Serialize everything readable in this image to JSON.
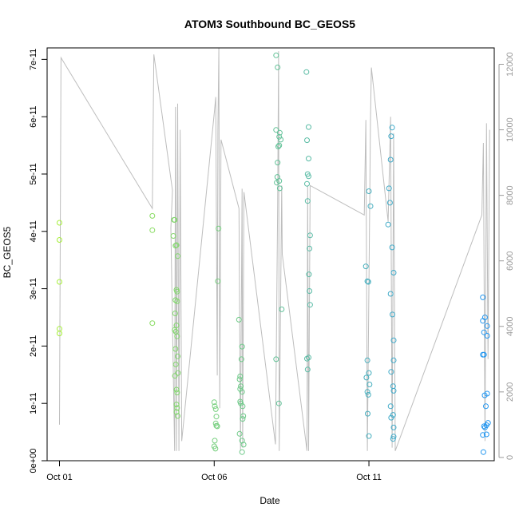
{
  "chart_data": {
    "type": "scatter",
    "title": "ATOM3 Southbound BC_GEOS5",
    "xlabel": "Date",
    "ylabel": "BC_GEOS5",
    "x_ticks": [
      "Oct 01",
      "Oct 06",
      "Oct 11"
    ],
    "y_ticks": [
      "0e+00",
      "1e-11",
      "2e-11",
      "3e-11",
      "4e-11",
      "5e-11",
      "6e-11",
      "7e-11"
    ],
    "y_tick_values": [
      0,
      1e-11,
      2e-11,
      3e-11,
      4e-11,
      5e-11,
      6e-11,
      7e-11
    ],
    "ylim": [
      0,
      7.2e-11
    ],
    "xlim_days": [
      30.6,
      45.05
    ],
    "x_tick_days": [
      31,
      36,
      41
    ],
    "y2_ticks": [
      "0",
      "2000",
      "4000",
      "6000",
      "8000",
      "10000",
      "12000"
    ],
    "y2_tick_values": [
      0,
      2000,
      4000,
      6000,
      8000,
      10000,
      12000
    ],
    "y2lim": [
      -100,
      12500
    ],
    "grid": false,
    "colors": {
      "scatter_start": "#a6ef3a",
      "scatter_end": "#2196f3",
      "altitude_line": "#bdbdbd"
    },
    "points": [
      [
        31.0,
        4.15e-11
      ],
      [
        31.0,
        3.85e-11
      ],
      [
        31.0,
        3.12e-11
      ],
      [
        31.0,
        2.3e-11
      ],
      [
        31.0,
        2.22e-11
      ],
      [
        34.0,
        4.27e-11
      ],
      [
        34.0,
        4.02e-11
      ],
      [
        34.0,
        2.4e-11
      ],
      [
        34.7,
        4.2e-11
      ],
      [
        34.72,
        4.2e-11
      ],
      [
        34.68,
        3.92e-11
      ],
      [
        34.75,
        3.75e-11
      ],
      [
        34.78,
        3.76e-11
      ],
      [
        34.82,
        3.57e-11
      ],
      [
        34.78,
        2.98e-11
      ],
      [
        34.8,
        2.95e-11
      ],
      [
        34.75,
        2.8e-11
      ],
      [
        34.8,
        2.78e-11
      ],
      [
        34.74,
        2.57e-11
      ],
      [
        34.78,
        2.36e-11
      ],
      [
        34.72,
        2.28e-11
      ],
      [
        34.76,
        2.25e-11
      ],
      [
        34.8,
        2.17e-11
      ],
      [
        34.75,
        1.95e-11
      ],
      [
        34.82,
        1.82e-11
      ],
      [
        34.76,
        1.68e-11
      ],
      [
        34.83,
        1.53e-11
      ],
      [
        34.73,
        1.48e-11
      ],
      [
        34.78,
        1.24e-11
      ],
      [
        34.8,
        1.19e-11
      ],
      [
        34.78,
        9.8e-12
      ],
      [
        34.8,
        9.2e-12
      ],
      [
        34.78,
        8.5e-12
      ],
      [
        34.82,
        7.8e-12
      ],
      [
        36.0,
        1.02e-11
      ],
      [
        36.02,
        9.5e-12
      ],
      [
        36.05,
        9e-12
      ],
      [
        36.07,
        7.7e-12
      ],
      [
        36.05,
        6.5e-12
      ],
      [
        36.07,
        6.1e-12
      ],
      [
        36.1,
        6e-12
      ],
      [
        36.02,
        3.5e-12
      ],
      [
        36.0,
        2.5e-12
      ],
      [
        36.04,
        2.1e-12
      ],
      [
        36.14,
        4.05e-11
      ],
      [
        36.12,
        3.13e-11
      ],
      [
        36.8,
        2.46e-11
      ],
      [
        36.9,
        1.99e-11
      ],
      [
        36.88,
        1.77e-11
      ],
      [
        36.84,
        1.47e-11
      ],
      [
        36.82,
        1.42e-11
      ],
      [
        36.86,
        1.3e-11
      ],
      [
        36.84,
        1.25e-11
      ],
      [
        36.9,
        1.2e-11
      ],
      [
        36.84,
        1.03e-11
      ],
      [
        36.86,
        1e-11
      ],
      [
        36.92,
        9.5e-12
      ],
      [
        36.94,
        7.8e-12
      ],
      [
        36.92,
        7.3e-12
      ],
      [
        36.82,
        4.7e-12
      ],
      [
        36.9,
        3.5e-12
      ],
      [
        36.95,
        2.8e-12
      ],
      [
        36.9,
        1.5e-12
      ],
      [
        38.0,
        7.07e-11
      ],
      [
        38.05,
        6.86e-11
      ],
      [
        38.0,
        5.77e-11
      ],
      [
        38.12,
        5.72e-11
      ],
      [
        38.1,
        5.65e-11
      ],
      [
        38.15,
        5.6e-11
      ],
      [
        38.1,
        5.5e-11
      ],
      [
        38.07,
        5.48e-11
      ],
      [
        38.05,
        5.2e-11
      ],
      [
        38.04,
        4.95e-11
      ],
      [
        38.02,
        4.85e-11
      ],
      [
        38.1,
        4.88e-11
      ],
      [
        38.12,
        4.75e-11
      ],
      [
        38.18,
        2.64e-11
      ],
      [
        38.0,
        1.77e-11
      ],
      [
        38.09,
        1e-11
      ],
      [
        38.98,
        6.78e-11
      ],
      [
        39.05,
        5.82e-11
      ],
      [
        39.0,
        5.59e-11
      ],
      [
        39.05,
        5.27e-11
      ],
      [
        39.02,
        5e-11
      ],
      [
        39.05,
        4.96e-11
      ],
      [
        39.0,
        4.83e-11
      ],
      [
        39.02,
        4.53e-11
      ],
      [
        39.1,
        3.93e-11
      ],
      [
        39.08,
        3.7e-11
      ],
      [
        39.06,
        3.25e-11
      ],
      [
        39.08,
        2.96e-11
      ],
      [
        39.1,
        2.72e-11
      ],
      [
        39.05,
        1.8e-11
      ],
      [
        39.0,
        1.78e-11
      ],
      [
        39.02,
        1.59e-11
      ],
      [
        40.9,
        3.39e-11
      ],
      [
        40.95,
        3.13e-11
      ],
      [
        40.98,
        3.12e-11
      ],
      [
        41.0,
        4.7e-11
      ],
      [
        41.05,
        4.44e-11
      ],
      [
        40.95,
        1.75e-11
      ],
      [
        41.0,
        1.53e-11
      ],
      [
        40.92,
        1.45e-11
      ],
      [
        41.02,
        1.33e-11
      ],
      [
        40.95,
        1.2e-11
      ],
      [
        40.98,
        1.15e-11
      ],
      [
        40.96,
        8.2e-12
      ],
      [
        41.0,
        4.3e-12
      ],
      [
        41.75,
        5.81e-11
      ],
      [
        41.72,
        5.66e-11
      ],
      [
        41.7,
        5.25e-11
      ],
      [
        41.65,
        4.75e-11
      ],
      [
        41.68,
        4.5e-11
      ],
      [
        41.62,
        4.12e-11
      ],
      [
        41.75,
        3.72e-11
      ],
      [
        41.8,
        3.28e-11
      ],
      [
        41.7,
        2.91e-11
      ],
      [
        41.76,
        2.55e-11
      ],
      [
        41.8,
        2.1e-11
      ],
      [
        41.8,
        1.75e-11
      ],
      [
        41.72,
        1.55e-11
      ],
      [
        41.78,
        1.3e-11
      ],
      [
        41.8,
        1.22e-11
      ],
      [
        41.7,
        9.5e-12
      ],
      [
        41.72,
        7.5e-12
      ],
      [
        41.78,
        8e-12
      ],
      [
        41.8,
        5.8e-12
      ],
      [
        41.8,
        4.2e-12
      ],
      [
        41.78,
        3.8e-12
      ],
      [
        44.68,
        2.85e-11
      ],
      [
        44.75,
        2.5e-11
      ],
      [
        44.68,
        2.44e-11
      ],
      [
        44.82,
        2.35e-11
      ],
      [
        44.72,
        2.24e-11
      ],
      [
        44.82,
        2.18e-11
      ],
      [
        44.68,
        1.85e-11
      ],
      [
        44.72,
        1.85e-11
      ],
      [
        44.82,
        1.17e-11
      ],
      [
        44.74,
        1.14e-11
      ],
      [
        44.78,
        9.5e-12
      ],
      [
        44.85,
        6.6e-12
      ],
      [
        44.8,
        6.2e-12
      ],
      [
        44.72,
        6e-12
      ],
      [
        44.75,
        5.8e-12
      ],
      [
        44.8,
        4.6e-12
      ],
      [
        44.68,
        4.5e-12
      ],
      [
        44.7,
        1.5e-12
      ]
    ],
    "altitude_series": [
      [
        31.0,
        1000
      ],
      [
        31.05,
        12200
      ],
      [
        34.0,
        7600
      ],
      [
        34.05,
        12300
      ],
      [
        34.65,
        8150
      ],
      [
        34.6,
        7000
      ],
      [
        34.72,
        200
      ],
      [
        34.75,
        10700
      ],
      [
        34.78,
        200
      ],
      [
        34.82,
        10800
      ],
      [
        34.86,
        200
      ],
      [
        34.9,
        10000
      ],
      [
        34.95,
        500
      ],
      [
        36.0,
        10500
      ],
      [
        36.05,
        11000
      ],
      [
        36.1,
        2500
      ],
      [
        36.12,
        10000
      ],
      [
        36.15,
        12500
      ],
      [
        36.18,
        1500
      ],
      [
        36.22,
        9700
      ],
      [
        36.8,
        7600
      ],
      [
        36.85,
        200
      ],
      [
        36.9,
        8200
      ],
      [
        36.92,
        300
      ],
      [
        36.96,
        8100
      ],
      [
        37.98,
        400
      ],
      [
        38.05,
        7600
      ],
      [
        38.08,
        12400
      ],
      [
        38.1,
        200
      ],
      [
        38.18,
        8300
      ],
      [
        38.2,
        6200
      ],
      [
        39.0,
        200
      ],
      [
        39.02,
        8300
      ],
      [
        39.05,
        200
      ],
      [
        39.1,
        8300
      ],
      [
        40.85,
        7400
      ],
      [
        40.9,
        10300
      ],
      [
        40.95,
        200
      ],
      [
        41.05,
        10300
      ],
      [
        41.08,
        11900
      ],
      [
        41.62,
        7200
      ],
      [
        41.7,
        10400
      ],
      [
        41.75,
        300
      ],
      [
        41.8,
        9900
      ],
      [
        41.85,
        200
      ],
      [
        44.65,
        7400
      ],
      [
        44.7,
        9600
      ],
      [
        44.75,
        500
      ],
      [
        44.8,
        10200
      ],
      [
        44.85,
        3000
      ],
      [
        44.9,
        10000
      ]
    ]
  }
}
